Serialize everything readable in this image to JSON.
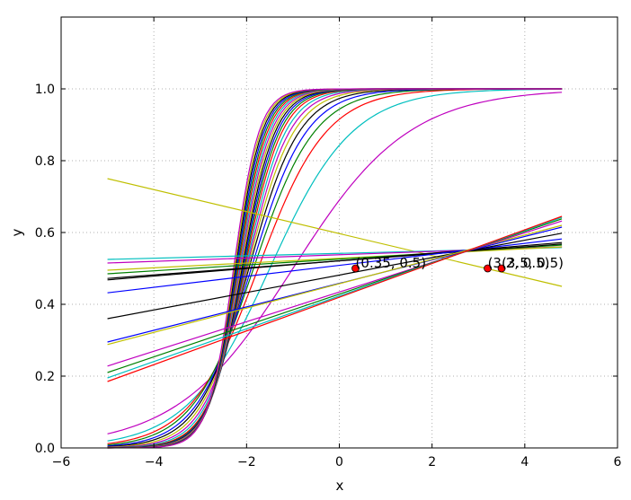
{
  "chart_data": {
    "type": "line",
    "title": "",
    "xlabel": "x",
    "ylabel": "y",
    "xlim": [
      -6,
      6
    ],
    "ylim": [
      0.0,
      1.2
    ],
    "xticks": [
      -6,
      -4,
      -2,
      0,
      2,
      4,
      6
    ],
    "xtick_labels": [
      "−6",
      "−4",
      "−2",
      "0",
      "2",
      "4",
      "6"
    ],
    "yticks": [
      0.0,
      0.2,
      0.4,
      0.6,
      0.8,
      1.0
    ],
    "ytick_labels": [
      "0.0",
      "0.2",
      "0.4",
      "0.6",
      "0.8",
      "1.0"
    ],
    "grid": true,
    "legend": "none",
    "x_range": [
      -5,
      4.8
    ],
    "palette": [
      "#0000ff",
      "#008000",
      "#ff0000",
      "#00bfbf",
      "#bf00bf",
      "#bfbf00",
      "#000000"
    ],
    "sigmoid_series": [
      {
        "slope": 0.5,
        "center": -1.0,
        "color": "#bf00bf"
      },
      {
        "slope": 0.7,
        "center": -1.5,
        "color": "#00bfbf"
      },
      {
        "slope": 0.85,
        "center": -1.75,
        "color": "#ff0000"
      },
      {
        "slope": 0.95,
        "center": -1.85,
        "color": "#008000"
      },
      {
        "slope": 1.05,
        "center": -1.9,
        "color": "#0000ff"
      },
      {
        "slope": 1.15,
        "center": -1.95,
        "color": "#000000"
      },
      {
        "slope": 1.25,
        "center": -1.98,
        "color": "#bfbf00"
      },
      {
        "slope": 1.35,
        "center": -2.0,
        "color": "#bf00bf"
      },
      {
        "slope": 1.45,
        "center": -2.02,
        "color": "#00bfbf"
      },
      {
        "slope": 1.55,
        "center": -2.04,
        "color": "#ff0000"
      },
      {
        "slope": 1.62,
        "center": -2.06,
        "color": "#008000"
      },
      {
        "slope": 1.68,
        "center": -2.08,
        "color": "#0000ff"
      },
      {
        "slope": 1.74,
        "center": -2.1,
        "color": "#000000"
      },
      {
        "slope": 1.8,
        "center": -2.12,
        "color": "#bfbf00"
      },
      {
        "slope": 1.86,
        "center": -2.14,
        "color": "#bf00bf"
      },
      {
        "slope": 1.92,
        "center": -2.16,
        "color": "#00bfbf"
      },
      {
        "slope": 1.98,
        "center": -2.18,
        "color": "#ff0000"
      },
      {
        "slope": 2.04,
        "center": -2.2,
        "color": "#008000"
      },
      {
        "slope": 2.1,
        "center": -2.22,
        "color": "#0000ff"
      },
      {
        "slope": 2.16,
        "center": -2.24,
        "color": "#000000"
      },
      {
        "slope": 2.22,
        "center": -2.26,
        "color": "#bfbf00"
      },
      {
        "slope": 2.28,
        "center": -2.28,
        "color": "#bf00bf"
      }
    ],
    "linear_series": [
      {
        "x": [
          -5,
          4.8
        ],
        "y": [
          0.75,
          0.45
        ],
        "color": "#bfbf00"
      },
      {
        "x": [
          -5,
          4.8
        ],
        "y": [
          0.525,
          0.558
        ],
        "color": "#00bfbf"
      },
      {
        "x": [
          -5,
          4.8
        ],
        "y": [
          0.515,
          0.56
        ],
        "color": "#bf00bf"
      },
      {
        "x": [
          -5,
          4.8
        ],
        "y": [
          0.495,
          0.56
        ],
        "color": "#bfbf00"
      },
      {
        "x": [
          -5,
          4.8
        ],
        "y": [
          0.485,
          0.565
        ],
        "color": "#008000"
      },
      {
        "x": [
          -5,
          4.8
        ],
        "y": [
          0.472,
          0.568
        ],
        "color": "#000000"
      },
      {
        "x": [
          -5,
          4.8
        ],
        "y": [
          0.468,
          0.572
        ],
        "color": "#000000"
      },
      {
        "x": [
          -5,
          4.8
        ],
        "y": [
          0.432,
          0.582
        ],
        "color": "#0000ff"
      },
      {
        "x": [
          -5,
          4.8
        ],
        "y": [
          0.36,
          0.598
        ],
        "color": "#000000"
      },
      {
        "x": [
          -5,
          4.8
        ],
        "y": [
          0.295,
          0.615
        ],
        "color": "#0000ff"
      },
      {
        "x": [
          -5,
          4.8
        ],
        "y": [
          0.288,
          0.62
        ],
        "color": "#bfbf00"
      },
      {
        "x": [
          -5,
          4.8
        ],
        "y": [
          0.228,
          0.632
        ],
        "color": "#bf00bf"
      },
      {
        "x": [
          -5,
          4.8
        ],
        "y": [
          0.21,
          0.638
        ],
        "color": "#008000"
      },
      {
        "x": [
          -5,
          4.8
        ],
        "y": [
          0.195,
          0.642
        ],
        "color": "#00bfbf"
      },
      {
        "x": [
          -5,
          4.8
        ],
        "y": [
          0.185,
          0.645
        ],
        "color": "#ff0000"
      }
    ],
    "points": [
      {
        "x": 0.35,
        "y": 0.5,
        "label": "(0.35, 0.5)",
        "color": "#ff0000"
      },
      {
        "x": 3.2,
        "y": 0.5,
        "label": "(3.2, 0.5)",
        "color": "#ff0000"
      },
      {
        "x": 3.5,
        "y": 0.5,
        "label": "(3.5, 0.5)",
        "color": "#ff0000"
      }
    ]
  }
}
